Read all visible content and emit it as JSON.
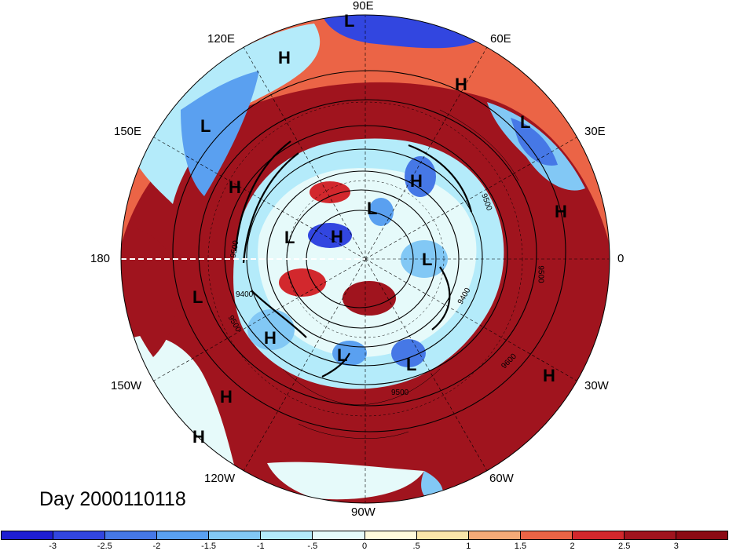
{
  "title": "Day 2000110118",
  "longitude_labels": {
    "lon_90e": "90E",
    "lon_60e": "60E",
    "lon_30e": "30E",
    "lon_0": "0",
    "lon_30w": "30W",
    "lon_60w": "60W",
    "lon_90w": "90W",
    "lon_120w": "120W",
    "lon_150w": "150W",
    "lon_180": "180",
    "lon_150e": "150E",
    "lon_120e": "120E"
  },
  "pressure_markers": [
    "H",
    "L",
    "H",
    "L",
    "H",
    "H",
    "L",
    "H",
    "L",
    "H",
    "L",
    "L",
    "L",
    "H",
    "L",
    "L",
    "H",
    "H",
    "L",
    "H",
    "H"
  ],
  "contour_labels": [
    "9400",
    "9500",
    "9600",
    "9500",
    "9400",
    "9500",
    "9500",
    "9600",
    "9600",
    "9500"
  ],
  "colorbar": {
    "labels": [
      "-3",
      "-2.5",
      "-2",
      "-1.5",
      "-1",
      "-.5",
      "0",
      ".5",
      "1",
      "1.5",
      "2",
      "2.5",
      "3"
    ],
    "colors": [
      "#1e1ed2",
      "#3246e0",
      "#4678e6",
      "#5aa0f0",
      "#82c8f5",
      "#b4ebfa",
      "#e6fafa",
      "#fffadc",
      "#fae6aa",
      "#f5aa78",
      "#eb6446",
      "#d2282d",
      "#a0141e",
      "#8c0a14"
    ]
  }
}
